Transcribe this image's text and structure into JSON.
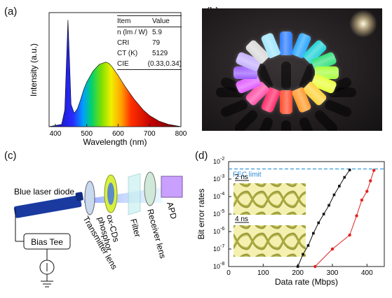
{
  "labels": {
    "a": "(a)",
    "b": "(b)",
    "c": "(c)",
    "d": "(d)"
  },
  "spectrum": {
    "xlabel": "Wavelength (nm)",
    "ylabel": "Intensity (a.u.)",
    "xticks": [
      "400",
      "500",
      "600",
      "700",
      "800"
    ]
  },
  "table": {
    "header": [
      "Item",
      "Value"
    ],
    "rows": [
      [
        "n (lm / W)",
        "5.9"
      ],
      [
        "CRI",
        "79"
      ],
      [
        "CT (K)",
        "5129"
      ],
      [
        "CIE",
        "(0.33,0.34)"
      ]
    ]
  },
  "photo": {
    "cap_colors": [
      "#2a7bff",
      "#27a6ff",
      "#1fd1d6",
      "#2fe07a",
      "#a7ff3a",
      "#e8ff3a",
      "#ffd23a",
      "#ff9a2a",
      "#ff4a2a",
      "#ff2a6a",
      "#ff4fa8",
      "#e05aff",
      "#9a5aff",
      "#c5b0ff",
      "#d9d9d9",
      "#9fe6ff"
    ]
  },
  "setup": {
    "blue_laser": "Blue laser diode",
    "bias_tee": "Bias Tee",
    "transmitter": "Transmitter lens",
    "phosphor": "ox-CDs\nphosphor",
    "filter": "Filter",
    "receiver": "Receiver lens",
    "apd": "APD"
  },
  "chart_data": [
    {
      "type": "area",
      "xlabel": "Wavelength (nm)",
      "ylabel": "Intensity (a.u.)",
      "xlim": [
        380,
        800
      ],
      "xticks": [
        400,
        500,
        600,
        700,
        800
      ],
      "series": [
        {
          "x": [
            380,
            420,
            430,
            435,
            440,
            445,
            450,
            460,
            470,
            480,
            490,
            500,
            520,
            540,
            560,
            570,
            580,
            600,
            620,
            650,
            680,
            700,
            730,
            760,
            800
          ],
          "y": [
            0,
            0.02,
            0.15,
            0.55,
            0.96,
            0.6,
            0.2,
            0.12,
            0.16,
            0.24,
            0.33,
            0.4,
            0.5,
            0.56,
            0.58,
            0.57,
            0.54,
            0.46,
            0.37,
            0.25,
            0.15,
            0.1,
            0.05,
            0.02,
            0.0
          ]
        }
      ]
    },
    {
      "type": "line",
      "xlabel": "Data rate (Mbps)",
      "ylabel": "Bit error rates",
      "xlim": [
        0,
        450
      ],
      "xticks": [
        0,
        100,
        200,
        300,
        400
      ],
      "ylim_exp": [
        -8,
        -2
      ],
      "ytick_labels": [
        "10",
        "10",
        "10",
        "10",
        "10",
        "10",
        "10"
      ],
      "ytick_exps": [
        "-8",
        "-7",
        "-6",
        "-5",
        "-4",
        "-3",
        "-2"
      ],
      "fec_label": "FEC limit",
      "fec_exp": -2.42,
      "inset_labels": [
        "2 ns",
        "4 ns"
      ],
      "series": [
        {
          "color": "#111111",
          "x": [
            200,
            215,
            230,
            245,
            260,
            275,
            290,
            305,
            320,
            335,
            350
          ],
          "y_exp": [
            -8,
            -7.3,
            -6.8,
            -6.1,
            -5.5,
            -5.0,
            -4.5,
            -3.9,
            -3.4,
            -2.9,
            -2.48
          ]
        },
        {
          "color": "#e02020",
          "x": [
            250,
            300,
            350,
            370,
            385,
            400,
            410,
            420
          ],
          "y_exp": [
            -8,
            -7.0,
            -6.2,
            -5.1,
            -4.2,
            -3.7,
            -3.1,
            -2.5
          ]
        }
      ]
    }
  ]
}
